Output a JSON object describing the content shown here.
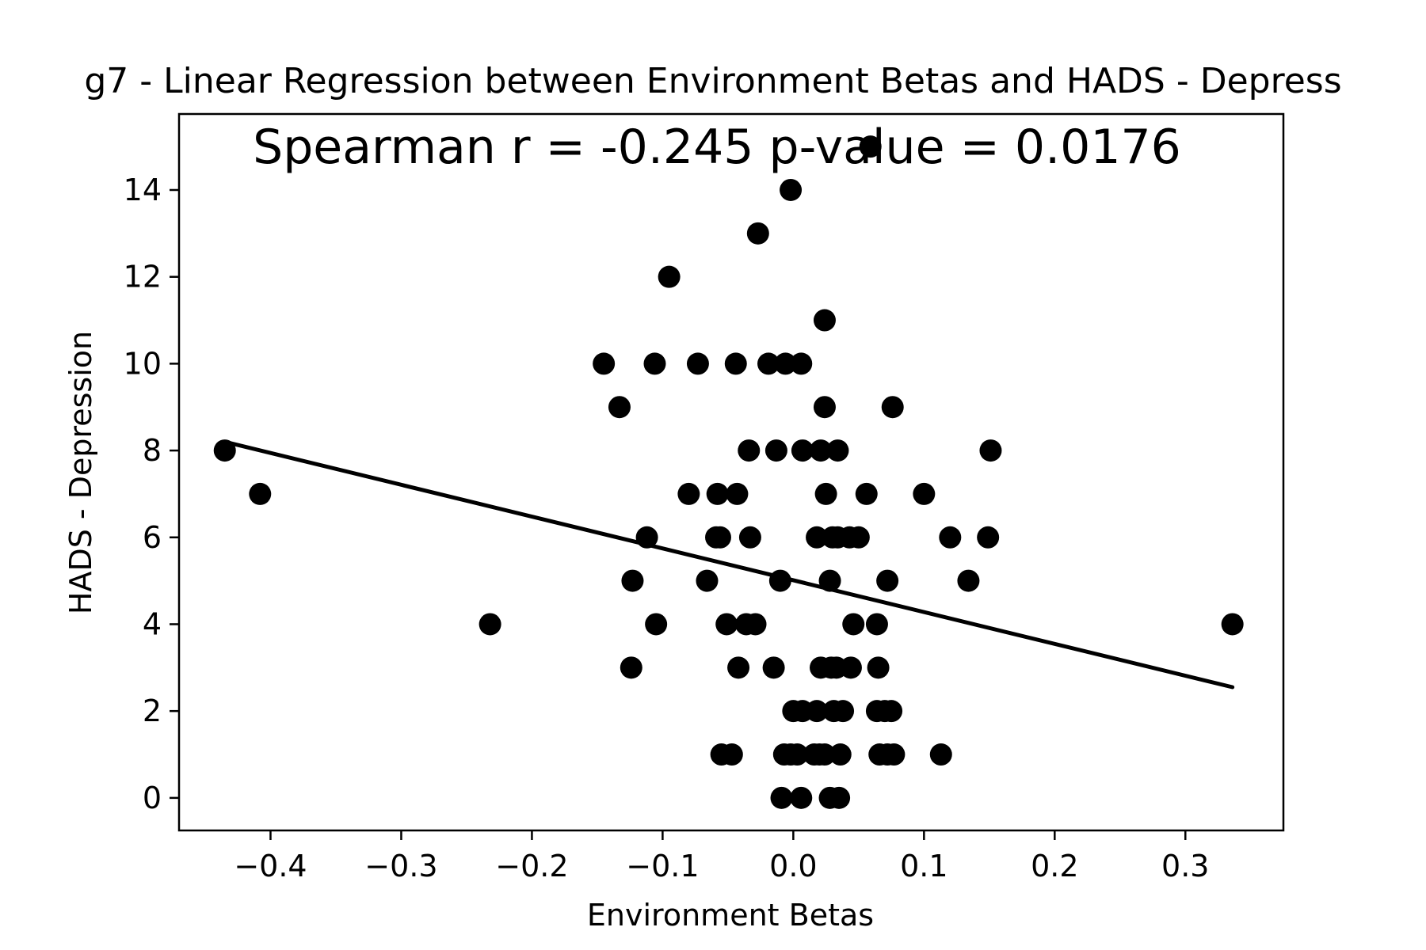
{
  "chart_data": {
    "type": "scatter",
    "title": "g7 - Linear Regression between Environment Betas and HADS - Depress",
    "annotation": "Spearman r = -0.245  p-value = 0.0176",
    "xlabel": "Environment Betas",
    "ylabel": "HADS - Depression",
    "xlim": [
      -0.47,
      0.375
    ],
    "ylim": [
      -0.75,
      15.75
    ],
    "xticks": [
      -0.4,
      -0.3,
      -0.2,
      -0.1,
      0.0,
      0.1,
      0.2,
      0.3
    ],
    "xtick_labels": [
      "−0.4",
      "−0.3",
      "−0.2",
      "−0.1",
      "0.0",
      "0.1",
      "0.2",
      "0.3"
    ],
    "yticks": [
      0,
      2,
      4,
      6,
      8,
      10,
      12,
      14
    ],
    "ytick_labels": [
      "0",
      "2",
      "4",
      "6",
      "8",
      "10",
      "12",
      "14"
    ],
    "grid": false,
    "point_color": "#000000",
    "line_color": "#000000",
    "points": [
      [
        -0.435,
        8
      ],
      [
        -0.408,
        7
      ],
      [
        -0.232,
        4
      ],
      [
        0.336,
        4
      ],
      [
        -0.145,
        10
      ],
      [
        -0.106,
        10
      ],
      [
        -0.073,
        10
      ],
      [
        -0.044,
        10
      ],
      [
        -0.019,
        10
      ],
      [
        -0.006,
        10
      ],
      [
        0.006,
        10
      ],
      [
        -0.133,
        9
      ],
      [
        0.024,
        9
      ],
      [
        0.076,
        9
      ],
      [
        -0.034,
        8
      ],
      [
        -0.013,
        8
      ],
      [
        0.007,
        8
      ],
      [
        0.021,
        8
      ],
      [
        0.034,
        8
      ],
      [
        0.151,
        8
      ],
      [
        -0.08,
        7
      ],
      [
        -0.058,
        7
      ],
      [
        -0.043,
        7
      ],
      [
        0.025,
        7
      ],
      [
        0.056,
        7
      ],
      [
        0.1,
        7
      ],
      [
        -0.112,
        6
      ],
      [
        -0.059,
        6
      ],
      [
        -0.056,
        6
      ],
      [
        -0.033,
        6
      ],
      [
        0.018,
        6
      ],
      [
        0.03,
        6
      ],
      [
        0.034,
        6
      ],
      [
        0.043,
        6
      ],
      [
        0.05,
        6
      ],
      [
        0.12,
        6
      ],
      [
        0.149,
        6
      ],
      [
        -0.123,
        5
      ],
      [
        -0.066,
        5
      ],
      [
        -0.01,
        5
      ],
      [
        0.028,
        5
      ],
      [
        0.072,
        5
      ],
      [
        0.134,
        5
      ],
      [
        -0.105,
        4
      ],
      [
        -0.051,
        4
      ],
      [
        -0.036,
        4
      ],
      [
        -0.029,
        4
      ],
      [
        0.046,
        4
      ],
      [
        0.064,
        4
      ],
      [
        -0.124,
        3
      ],
      [
        -0.042,
        3
      ],
      [
        -0.015,
        3
      ],
      [
        0.021,
        3
      ],
      [
        0.029,
        3
      ],
      [
        0.033,
        3
      ],
      [
        0.044,
        3
      ],
      [
        0.065,
        3
      ],
      [
        0.0,
        2
      ],
      [
        0.007,
        2
      ],
      [
        0.018,
        2
      ],
      [
        0.031,
        2
      ],
      [
        0.038,
        2
      ],
      [
        0.064,
        2
      ],
      [
        0.07,
        2
      ],
      [
        0.075,
        2
      ],
      [
        -0.055,
        1
      ],
      [
        -0.047,
        1
      ],
      [
        -0.007,
        1
      ],
      [
        -0.002,
        1
      ],
      [
        0.003,
        1
      ],
      [
        0.016,
        1
      ],
      [
        0.02,
        1
      ],
      [
        0.024,
        1
      ],
      [
        0.036,
        1
      ],
      [
        0.066,
        1
      ],
      [
        0.072,
        1
      ],
      [
        0.077,
        1
      ],
      [
        0.113,
        1
      ],
      [
        -0.009,
        0
      ],
      [
        0.006,
        0
      ],
      [
        0.028,
        0
      ],
      [
        0.035,
        0
      ],
      [
        -0.002,
        14
      ],
      [
        -0.027,
        13
      ],
      [
        -0.095,
        12
      ],
      [
        0.024,
        11
      ],
      [
        0.059,
        15
      ]
    ],
    "regression_line": {
      "x": [
        -0.435,
        0.336
      ],
      "y": [
        8.2,
        2.55
      ]
    }
  }
}
